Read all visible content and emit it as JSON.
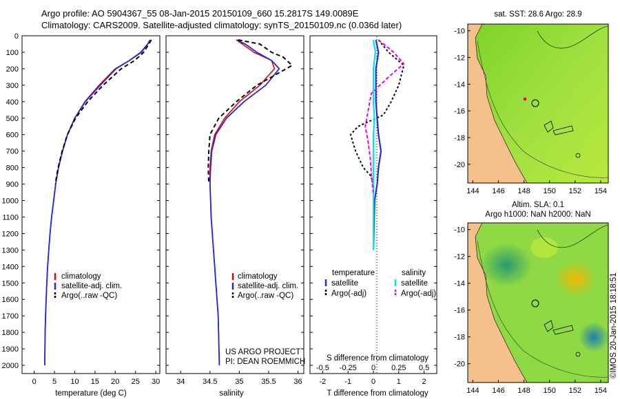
{
  "header": {
    "line1": "Argo profile: AO 5904367_55 08-Jan-2015 20150109_660 15.2817S 149.0089E",
    "line2": "Climatology: CARS2009. Satellite-adjusted climatology: synTS_20150109.nc (0.036d later)"
  },
  "colors": {
    "climatology": "#e8000b",
    "satellite": "#1f2bd8",
    "argo": "#000000",
    "salinity_satellite": "#00e5e5",
    "salinity_argo": "#e600e6",
    "land": "#f5c08c"
  },
  "depth_axis": {
    "ticks": [
      "0",
      "100",
      "200",
      "300",
      "400",
      "500",
      "600",
      "700",
      "800",
      "900",
      "1000",
      "1100",
      "1200",
      "1300",
      "1400",
      "1500",
      "1600",
      "1700",
      "1800",
      "1900",
      "2000"
    ]
  },
  "panels": {
    "temperature": {
      "xlabel": "temperature (deg C)",
      "ticks": [
        "0",
        "5",
        "10",
        "15",
        "20",
        "25",
        "30"
      ],
      "legend": [
        "climatology",
        "satellite-adj. clim.",
        "Argo(..raw -QC)"
      ]
    },
    "salinity": {
      "xlabel": "salinity",
      "ticks": [
        "34",
        "34.5",
        "35",
        "35.5",
        "36"
      ],
      "legend": [
        "climatology",
        "satellite-adj. clim.",
        "Argo(..raw -QC)"
      ],
      "note1": "US ARGO PROJECT",
      "note2": "PI: DEAN ROEMMICH"
    },
    "difference": {
      "xlabel": "T difference from climatology",
      "xlabel_top": "S difference from climatology",
      "t_ticks": [
        "-2",
        "-1",
        "0",
        "1",
        "2"
      ],
      "s_ticks": [
        "-0.5",
        "-0.25",
        "0",
        "0.25",
        "0.5"
      ],
      "legend_t_title": "temperature",
      "legend_s_title": "salinity",
      "legend_t": [
        "satellite",
        "Argo(-adj)"
      ],
      "legend_s": [
        "satellite",
        "Argo(-adj)"
      ]
    }
  },
  "maps": {
    "sst": {
      "title": "sat. SST: 28.6 Argo: 28.9",
      "x_ticks": [
        "144",
        "146",
        "148",
        "150",
        "152",
        "154"
      ],
      "y_ticks": [
        "-10",
        "-12",
        "-14",
        "-16",
        "-18",
        "-20"
      ]
    },
    "sla": {
      "title1": "Altim. SLA: 0.1",
      "title2": "Argo h1000: NaN h2000: NaN",
      "x_ticks": [
        "144",
        "146",
        "148",
        "150",
        "152",
        "154"
      ],
      "y_ticks": [
        "-10",
        "-12",
        "-14",
        "-16",
        "-18",
        "-20"
      ]
    }
  },
  "stamp": "©IMOS 20-Jan-2015 18:18:51",
  "chart_data": [
    {
      "type": "line",
      "xlabel": "temperature (deg C)",
      "ylabel": "",
      "xlim": [
        -3,
        31
      ],
      "ylim": [
        2050,
        0
      ],
      "series": [
        {
          "name": "climatology",
          "x": [
            28.8,
            28.0,
            26.5,
            23.5,
            20.0,
            16.0,
            12.5,
            10.0,
            8.2,
            7.0,
            6.0,
            5.3,
            4.8,
            4.3,
            3.9,
            3.6,
            3.3,
            3.1,
            2.95,
            2.8,
            2.7,
            2.6
          ],
          "y": [
            25,
            50,
            100,
            150,
            200,
            300,
            400,
            500,
            600,
            700,
            800,
            900,
            1000,
            1100,
            1200,
            1300,
            1400,
            1500,
            1600,
            1700,
            1800,
            2000
          ]
        },
        {
          "name": "satellite-adj. clim.",
          "x": [
            28.6,
            28.0,
            26.3,
            23.5,
            20.2,
            16.3,
            12.6,
            10.0,
            8.2,
            7.0,
            6.0,
            5.3,
            4.8,
            4.3,
            3.9,
            3.6,
            3.3,
            3.1,
            2.95,
            2.8,
            2.7,
            2.6
          ],
          "y": [
            25,
            50,
            100,
            150,
            200,
            300,
            400,
            500,
            600,
            700,
            800,
            900,
            1000,
            1100,
            1200,
            1300,
            1400,
            1500,
            1600,
            1700,
            1800,
            2000
          ]
        },
        {
          "name": "Argo(..raw -QC)",
          "x": [
            28.9,
            28.3,
            27.0,
            24.8,
            21.5,
            17.0,
            13.2,
            10.2,
            8.2,
            6.9,
            5.9,
            5.2
          ],
          "y": [
            25,
            50,
            100,
            150,
            200,
            300,
            400,
            500,
            600,
            700,
            800,
            900
          ]
        }
      ]
    },
    {
      "type": "line",
      "xlabel": "salinity",
      "ylabel": "",
      "xlim": [
        33.75,
        36.1
      ],
      "ylim": [
        2050,
        0
      ],
      "series": [
        {
          "name": "climatology",
          "x": [
            34.95,
            35.05,
            35.25,
            35.55,
            35.6,
            35.35,
            35.0,
            34.75,
            34.58,
            34.52,
            34.5,
            34.5,
            34.51,
            34.52,
            34.54,
            34.56,
            34.58,
            34.6,
            34.62,
            34.64,
            34.66
          ],
          "y": [
            25,
            50,
            100,
            150,
            200,
            300,
            400,
            500,
            600,
            700,
            800,
            900,
            1000,
            1100,
            1200,
            1300,
            1400,
            1500,
            1600,
            1700,
            2000
          ]
        },
        {
          "name": "satellite-adj. clim.",
          "x": [
            34.95,
            35.1,
            35.3,
            35.55,
            35.68,
            35.45,
            35.08,
            34.78,
            34.6,
            34.53,
            34.51,
            34.5,
            34.51,
            34.52,
            34.54,
            34.56,
            34.58,
            34.6,
            34.62,
            34.64,
            34.66
          ],
          "y": [
            25,
            50,
            100,
            150,
            200,
            300,
            400,
            500,
            600,
            700,
            800,
            900,
            1000,
            1100,
            1200,
            1300,
            1400,
            1500,
            1600,
            1700,
            2000
          ]
        },
        {
          "name": "Argo(..raw -QC)",
          "x": [
            34.98,
            35.35,
            35.55,
            35.75,
            35.9,
            35.3,
            34.95,
            34.65,
            34.5,
            34.48,
            34.47,
            34.48
          ],
          "y": [
            25,
            50,
            100,
            130,
            180,
            300,
            400,
            500,
            600,
            700,
            800,
            900
          ]
        }
      ]
    },
    {
      "type": "line",
      "xlabel": "T difference from climatology",
      "ylabel": "",
      "xlim": [
        -2.5,
        2.5
      ],
      "ylim": [
        2050,
        0
      ],
      "series": [
        {
          "name": "satellite",
          "x": [
            0.1,
            0.2,
            0.1,
            0.1,
            0.1,
            0.15,
            0.2,
            0.3,
            0.2,
            0.15,
            0.05,
            0.0
          ],
          "y": [
            25,
            100,
            200,
            300,
            400,
            500,
            600,
            700,
            800,
            900,
            1000,
            1300
          ]
        },
        {
          "name": "Argo(-adj)",
          "x": [
            0.2,
            0.6,
            1.2,
            1.0,
            0.7,
            0.4,
            -0.6,
            -0.9,
            -0.7,
            -0.4,
            -0.1,
            0.0
          ],
          "y": [
            25,
            100,
            180,
            300,
            400,
            480,
            550,
            600,
            700,
            800,
            850,
            900
          ]
        }
      ]
    },
    {
      "type": "line",
      "xlabel": "S difference from climatology",
      "ylabel": "",
      "xlim": [
        -0.625,
        0.625
      ],
      "ylim": [
        2050,
        0
      ],
      "series": [
        {
          "name": "satellite",
          "x": [
            0.0,
            0.02,
            0.0,
            0.0,
            0.0,
            0.01,
            0.0,
            0.0,
            0.0,
            0.0,
            0.0,
            0.0
          ],
          "y": [
            25,
            100,
            200,
            300,
            400,
            500,
            600,
            700,
            800,
            900,
            1000,
            1300
          ]
        },
        {
          "name": "Argo(-adj)",
          "x": [
            0.05,
            0.2,
            0.3,
            0.15,
            -0.02,
            -0.05,
            -0.08,
            -0.05,
            -0.03,
            -0.02,
            -0.01,
            0.0
          ],
          "y": [
            25,
            100,
            170,
            250,
            350,
            450,
            550,
            650,
            750,
            850,
            900,
            950
          ]
        }
      ]
    }
  ]
}
